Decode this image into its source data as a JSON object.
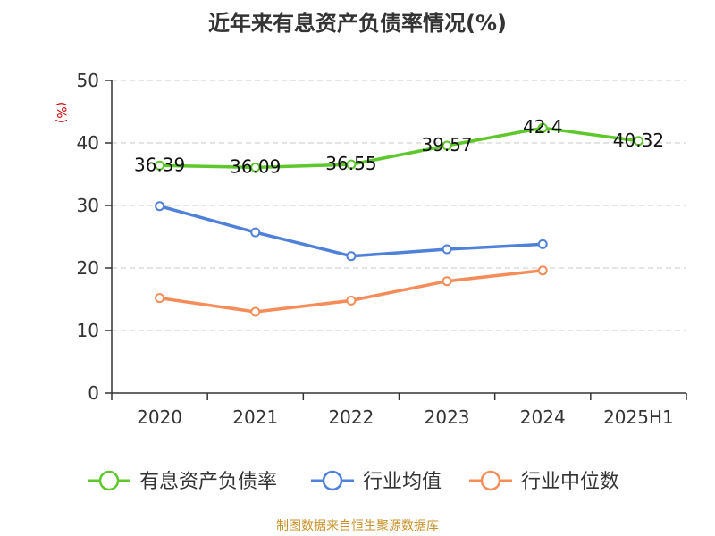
{
  "chart_data": {
    "type": "line",
    "title": "近年来有息资产负债率情况(%)",
    "ylabel": "(%)",
    "xlabel": "",
    "categories": [
      "2020",
      "2021",
      "2022",
      "2023",
      "2024",
      "2025H1"
    ],
    "ylim": [
      0,
      50
    ],
    "yticks": [
      0,
      10,
      20,
      30,
      40,
      50
    ],
    "grid": true,
    "legend_position": "bottom",
    "series": [
      {
        "name": "有息资产负债率",
        "color": "#5dc72b",
        "values": [
          36.39,
          36.09,
          36.55,
          39.57,
          42.4,
          40.32
        ],
        "labels": [
          "36.39",
          "36.09",
          "36.55",
          "39.57",
          "42.4",
          "40.32"
        ]
      },
      {
        "name": "行业均值",
        "color": "#4f81d9",
        "values": [
          29.9,
          25.7,
          21.9,
          23.0,
          23.8,
          null
        ]
      },
      {
        "name": "行业中位数",
        "color": "#f58d5a",
        "values": [
          15.2,
          13.0,
          14.8,
          17.9,
          19.6,
          null
        ]
      }
    ]
  },
  "source": "制图数据来自恒生聚源数据库",
  "colors": {
    "axis": "#333333",
    "grid": "#c8c8c8",
    "ylabel": "#cc0000",
    "source": "#c8902a"
  }
}
